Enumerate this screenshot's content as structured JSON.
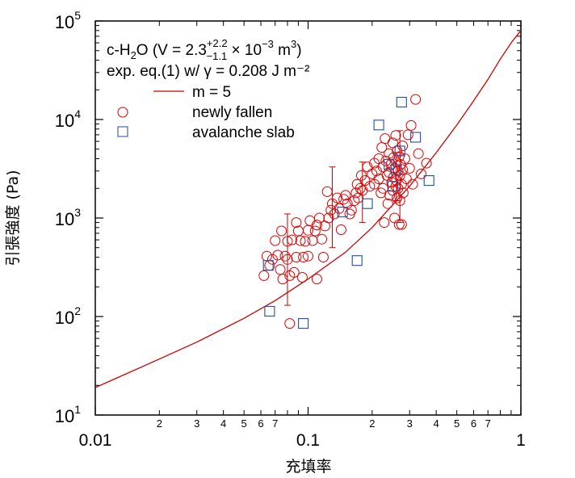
{
  "chart_data": {
    "type": "scatter",
    "xlabel": "充填率",
    "ylabel": "引張強度 (Pa)",
    "x_scale": "log",
    "y_scale": "log",
    "xlim": [
      0.01,
      1
    ],
    "ylim": [
      10,
      100000
    ],
    "x_major_ticks": [
      {
        "value": 0.01,
        "label": "0.01"
      },
      {
        "value": 0.1,
        "label": "0.1"
      },
      {
        "value": 1,
        "label": "1"
      }
    ],
    "x_minor_ticks": [
      {
        "value": 0.02,
        "label": "2"
      },
      {
        "value": 0.03,
        "label": "3"
      },
      {
        "value": 0.04,
        "label": "4"
      },
      {
        "value": 0.05,
        "label": "5"
      },
      {
        "value": 0.06,
        "label": "6"
      },
      {
        "value": 0.07,
        "label": "7"
      },
      {
        "value": 0.2,
        "label": "2"
      },
      {
        "value": 0.3,
        "label": "3"
      },
      {
        "value": 0.4,
        "label": "4"
      },
      {
        "value": 0.5,
        "label": "5"
      },
      {
        "value": 0.6,
        "label": "6"
      },
      {
        "value": 0.7,
        "label": "7"
      }
    ],
    "y_major_ticks": [
      {
        "value": 10,
        "base": "10",
        "exp": "1"
      },
      {
        "value": 100,
        "base": "10",
        "exp": "2"
      },
      {
        "value": 1000,
        "base": "10",
        "exp": "3"
      },
      {
        "value": 10000,
        "base": "10",
        "exp": "4"
      },
      {
        "value": 100000,
        "base": "10",
        "exp": "5"
      }
    ],
    "annotation": {
      "line1": {
        "pre": "c-H",
        "sub": "2",
        "post": "O  (V = 2.3",
        "sup_err": "+2.2",
        "sub_err": "−1.1",
        "times": " × 10",
        "exp": "−3",
        "unit": " m",
        "unit_exp": "3",
        "close": ")"
      },
      "line2": "exp. eq.(1) w/ γ = 0.208 J m⁻²"
    },
    "legend": [
      {
        "label": "m = 5",
        "marker": "line",
        "color": "#cc0000"
      },
      {
        "label": "newly fallen",
        "marker": "circle",
        "color": "#dd0000"
      },
      {
        "label": "avalanche slab",
        "marker": "square",
        "color": "#1f4fa0"
      }
    ],
    "series": [
      {
        "name": "m = 5",
        "kind": "line",
        "color": "#cc0000",
        "points": [
          [
            0.01,
            19
          ],
          [
            0.02,
            37
          ],
          [
            0.03,
            55
          ],
          [
            0.05,
            96
          ],
          [
            0.07,
            145
          ],
          [
            0.1,
            240
          ],
          [
            0.15,
            450
          ],
          [
            0.2,
            800
          ],
          [
            0.3,
            2100
          ],
          [
            0.4,
            4600
          ],
          [
            0.5,
            8800
          ],
          [
            0.6,
            15500
          ],
          [
            0.7,
            25500
          ],
          [
            0.8,
            41000
          ],
          [
            0.9,
            60000
          ],
          [
            1.0,
            80000
          ]
        ]
      },
      {
        "name": "newly fallen",
        "kind": "circle",
        "color": "#dd0000",
        "points": [
          [
            0.062,
            260
          ],
          [
            0.064,
            410
          ],
          [
            0.066,
            330
          ],
          [
            0.068,
            380
          ],
          [
            0.07,
            590
          ],
          [
            0.072,
            420
          ],
          [
            0.074,
            300
          ],
          [
            0.075,
            740
          ],
          [
            0.076,
            240
          ],
          [
            0.078,
            410
          ],
          [
            0.08,
            580
          ],
          [
            0.08,
            380
          ],
          [
            0.082,
            260
          ],
          [
            0.082,
            85
          ],
          [
            0.084,
            600
          ],
          [
            0.086,
            280
          ],
          [
            0.088,
            400
          ],
          [
            0.088,
            900
          ],
          [
            0.09,
            740
          ],
          [
            0.092,
            590
          ],
          [
            0.094,
            250
          ],
          [
            0.095,
            400
          ],
          [
            0.097,
            580
          ],
          [
            0.1,
            750
          ],
          [
            0.1,
            410
          ],
          [
            0.102,
            940
          ],
          [
            0.105,
            590
          ],
          [
            0.108,
            740
          ],
          [
            0.11,
            240
          ],
          [
            0.11,
            850
          ],
          [
            0.113,
            1000
          ],
          [
            0.116,
            610
          ],
          [
            0.118,
            400
          ],
          [
            0.12,
            830
          ],
          [
            0.123,
            1850
          ],
          [
            0.125,
            1000
          ],
          [
            0.128,
            1200
          ],
          [
            0.13,
            1400
          ],
          [
            0.133,
            1100
          ],
          [
            0.137,
            1600
          ],
          [
            0.14,
            1250
          ],
          [
            0.143,
            760
          ],
          [
            0.147,
            1550
          ],
          [
            0.15,
            1700
          ],
          [
            0.153,
            1400
          ],
          [
            0.157,
            1100
          ],
          [
            0.16,
            1200
          ],
          [
            0.165,
            1500
          ],
          [
            0.168,
            1800
          ],
          [
            0.17,
            2200
          ],
          [
            0.172,
            1600
          ],
          [
            0.176,
            2000
          ],
          [
            0.178,
            2700
          ],
          [
            0.18,
            1900
          ],
          [
            0.185,
            2400
          ],
          [
            0.19,
            3300
          ],
          [
            0.195,
            2100
          ],
          [
            0.2,
            2800
          ],
          [
            0.205,
            3600
          ],
          [
            0.205,
            2200
          ],
          [
            0.21,
            3000
          ],
          [
            0.215,
            4000
          ],
          [
            0.215,
            2500
          ],
          [
            0.22,
            1800
          ],
          [
            0.222,
            5200
          ],
          [
            0.225,
            3300
          ],
          [
            0.225,
            2000
          ],
          [
            0.228,
            900
          ],
          [
            0.23,
            6400
          ],
          [
            0.232,
            3800
          ],
          [
            0.235,
            2700
          ],
          [
            0.237,
            1400
          ],
          [
            0.24,
            4500
          ],
          [
            0.24,
            2900
          ],
          [
            0.242,
            1700
          ],
          [
            0.245,
            3500
          ],
          [
            0.247,
            2300
          ],
          [
            0.25,
            5800
          ],
          [
            0.25,
            1900
          ],
          [
            0.252,
            4100
          ],
          [
            0.252,
            2600
          ],
          [
            0.255,
            3200
          ],
          [
            0.255,
            1000
          ],
          [
            0.258,
            2100
          ],
          [
            0.258,
            6900
          ],
          [
            0.26,
            3700
          ],
          [
            0.26,
            2400
          ],
          [
            0.262,
            4800
          ],
          [
            0.262,
            1600
          ],
          [
            0.265,
            3000
          ],
          [
            0.265,
            2000
          ],
          [
            0.268,
            860
          ],
          [
            0.268,
            4200
          ],
          [
            0.27,
            2700
          ],
          [
            0.27,
            1500
          ],
          [
            0.272,
            3500
          ],
          [
            0.275,
            860
          ],
          [
            0.275,
            2200
          ],
          [
            0.278,
            5400
          ],
          [
            0.278,
            3100
          ],
          [
            0.28,
            1800
          ],
          [
            0.285,
            4000
          ],
          [
            0.29,
            2500
          ],
          [
            0.295,
            7000
          ],
          [
            0.3,
            3200
          ],
          [
            0.305,
            8700
          ],
          [
            0.31,
            2200
          ],
          [
            0.32,
            16000
          ],
          [
            0.33,
            4500
          ],
          [
            0.34,
            2800
          ],
          [
            0.36,
            3600
          ]
        ]
      },
      {
        "name": "avalanche slab",
        "kind": "square",
        "color": "#1f4fa0",
        "points": [
          [
            0.065,
            330
          ],
          [
            0.066,
            113
          ],
          [
            0.095,
            85
          ],
          [
            0.145,
            1150
          ],
          [
            0.17,
            370
          ],
          [
            0.19,
            1400
          ],
          [
            0.215,
            8800
          ],
          [
            0.24,
            3500
          ],
          [
            0.25,
            2100
          ],
          [
            0.26,
            3100
          ],
          [
            0.27,
            4800
          ],
          [
            0.275,
            15000
          ],
          [
            0.32,
            6600
          ],
          [
            0.37,
            2400
          ]
        ]
      }
    ],
    "error_bars": [
      {
        "x": 0.08,
        "y": 380,
        "y_low": 130,
        "y_high": 1100
      },
      {
        "x": 0.13,
        "y": 1400,
        "y_low": 500,
        "y_high": 3300
      },
      {
        "x": 0.18,
        "y": 1900,
        "y_low": 900,
        "y_high": 3700
      },
      {
        "x": 0.26,
        "y": 2900,
        "y_low": 1500,
        "y_high": 4600
      },
      {
        "x": 0.27,
        "y": 2200,
        "y_low": 900,
        "y_high": 7700
      }
    ]
  }
}
